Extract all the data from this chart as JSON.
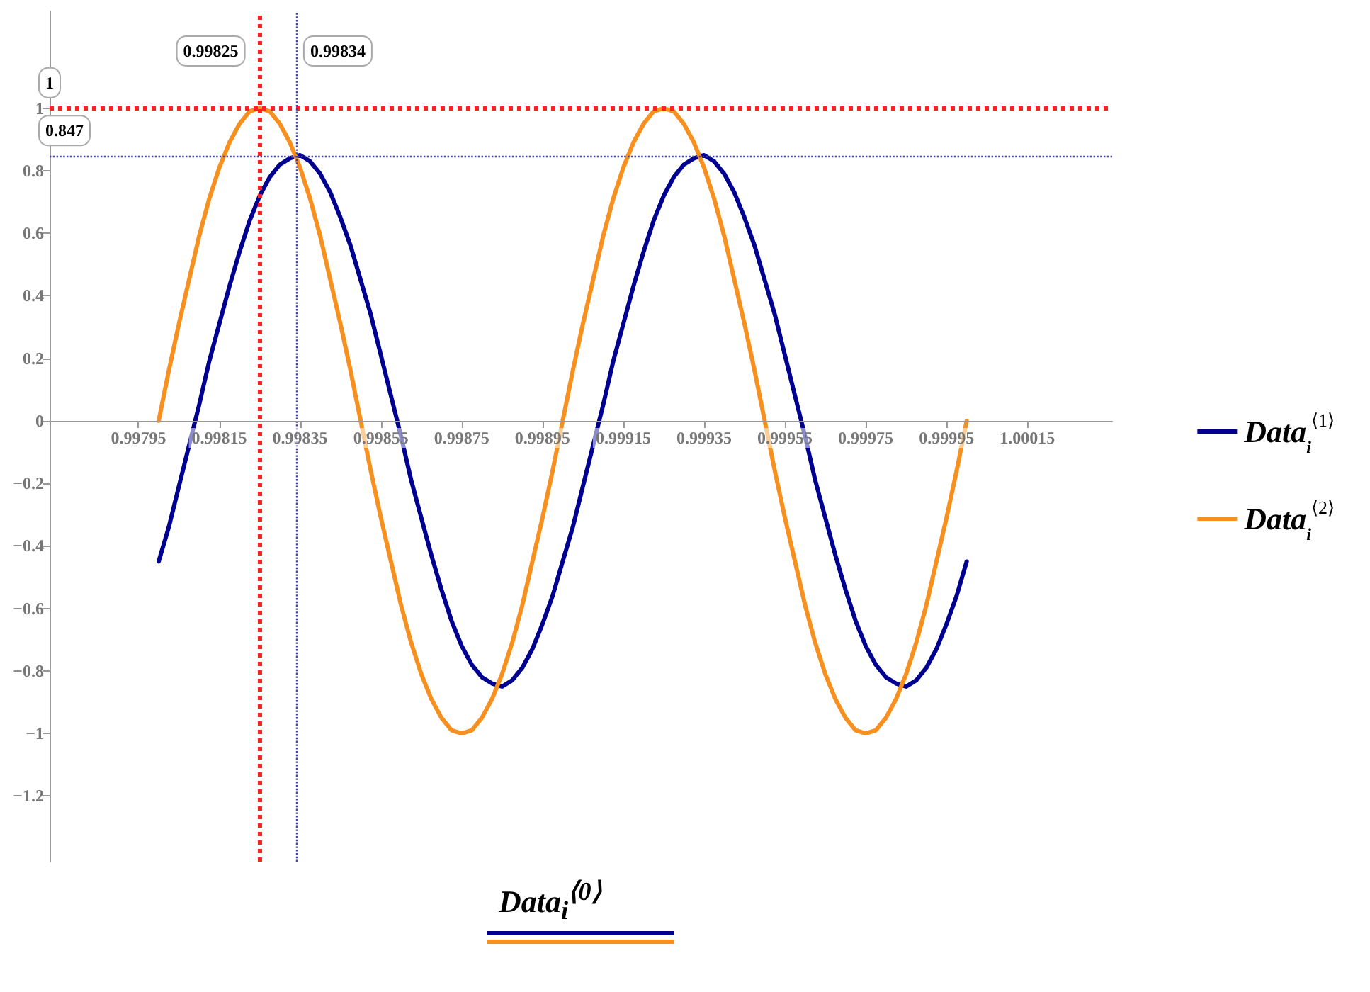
{
  "chart_data": {
    "type": "line",
    "xlabel": "Data$_{i}$$^{⟨0⟩}$",
    "x": [
      0.998,
      0.998025,
      0.99805,
      0.998075,
      0.9981,
      0.998125,
      0.99815,
      0.998175,
      0.9982,
      0.998225,
      0.99825,
      0.998275,
      0.9983,
      0.998325,
      0.99835,
      0.998375,
      0.9984,
      0.998425,
      0.99845,
      0.998475,
      0.9985,
      0.998525,
      0.99855,
      0.998575,
      0.9986,
      0.998625,
      0.99865,
      0.998675,
      0.9987,
      0.998725,
      0.99875,
      0.998775,
      0.9988,
      0.998825,
      0.99885,
      0.998875,
      0.9989,
      0.998925,
      0.99895,
      0.998975,
      0.999,
      0.999025,
      0.99905,
      0.999075,
      0.9991,
      0.999125,
      0.99915,
      0.999175,
      0.9992,
      0.999225,
      0.99925,
      0.999275,
      0.9993,
      0.999325,
      0.99935,
      0.999375,
      0.9994,
      0.999425,
      0.99945,
      0.999475,
      0.9995,
      0.999525,
      0.99955,
      0.999575,
      0.9996,
      0.999625,
      0.99965,
      0.999675,
      0.9997,
      0.999725,
      0.99975,
      0.999775,
      0.9998,
      0.999825,
      0.99985,
      0.999875,
      0.9999,
      0.999925,
      0.99995,
      0.999975,
      1.0
    ],
    "series": [
      {
        "name": "Data$_{i}$$^{⟨1⟩}$",
        "color": "#000090",
        "values": [
          -0.45,
          -0.34,
          -0.21,
          -0.08,
          0.05,
          0.19,
          0.31,
          0.43,
          0.54,
          0.64,
          0.72,
          0.78,
          0.82,
          0.84,
          0.85,
          0.83,
          0.79,
          0.73,
          0.65,
          0.56,
          0.45,
          0.34,
          0.21,
          0.08,
          -0.05,
          -0.19,
          -0.31,
          -0.43,
          -0.54,
          -0.64,
          -0.72,
          -0.78,
          -0.82,
          -0.84,
          -0.85,
          -0.83,
          -0.79,
          -0.73,
          -0.65,
          -0.56,
          -0.45,
          -0.34,
          -0.21,
          -0.08,
          0.05,
          0.19,
          0.31,
          0.43,
          0.54,
          0.64,
          0.72,
          0.78,
          0.82,
          0.84,
          0.85,
          0.83,
          0.79,
          0.73,
          0.65,
          0.56,
          0.45,
          0.34,
          0.21,
          0.08,
          -0.05,
          -0.19,
          -0.31,
          -0.43,
          -0.54,
          -0.64,
          -0.72,
          -0.78,
          -0.82,
          -0.84,
          -0.85,
          -0.83,
          -0.79,
          -0.73,
          -0.65,
          -0.56,
          -0.45
        ]
      },
      {
        "name": "Data$_{i}$$^{⟨2⟩}$",
        "color": "#f7901e",
        "values": [
          0,
          0.16,
          0.31,
          0.45,
          0.59,
          0.71,
          0.81,
          0.89,
          0.95,
          0.99,
          1,
          0.99,
          0.95,
          0.89,
          0.81,
          0.71,
          0.59,
          0.45,
          0.31,
          0.16,
          0,
          -0.16,
          -0.31,
          -0.45,
          -0.59,
          -0.71,
          -0.81,
          -0.89,
          -0.95,
          -0.99,
          -1,
          -0.99,
          -0.95,
          -0.89,
          -0.81,
          -0.71,
          -0.59,
          -0.45,
          -0.31,
          -0.16,
          0,
          0.16,
          0.31,
          0.45,
          0.59,
          0.71,
          0.81,
          0.89,
          0.95,
          0.99,
          1,
          0.99,
          0.95,
          0.89,
          0.81,
          0.71,
          0.59,
          0.45,
          0.31,
          0.16,
          0,
          -0.16,
          -0.31,
          -0.45,
          -0.59,
          -0.71,
          -0.81,
          -0.89,
          -0.95,
          -0.99,
          -1,
          -0.99,
          -0.95,
          -0.89,
          -0.81,
          -0.71,
          -0.59,
          -0.45,
          -0.31,
          -0.16,
          0
        ]
      }
    ],
    "xlim": [
      0.99773,
      1.00036
    ],
    "xticks": [
      0.99795,
      0.99815,
      0.99835,
      0.99855,
      0.99875,
      0.99895,
      0.99915,
      0.99935,
      0.99955,
      0.99975,
      0.99995,
      1.00015
    ],
    "ylim": [
      -1.41,
      1.31
    ],
    "yticks": [
      -1.2,
      -1,
      -0.8,
      -0.6,
      -0.4,
      -0.2,
      0,
      0.2,
      0.4,
      0.6,
      0.8,
      1
    ],
    "ref_lines": [
      {
        "axis": "y",
        "value": 1,
        "label": "1",
        "color": "#ff2020",
        "line_style": "dotted"
      },
      {
        "axis": "y",
        "value": 0.847,
        "label": "0.847",
        "color": "#4040b0",
        "line_style": "dotted"
      },
      {
        "axis": "x",
        "value": 0.99825,
        "label": "0.99825",
        "color": "#ff2020",
        "line_style": "dotted"
      },
      {
        "axis": "x",
        "value": 0.99834,
        "label": "0.99834",
        "color": "#4040b0",
        "line_style": "dotted"
      }
    ],
    "legend": "right",
    "marker": "none",
    "line_style": "solid"
  }
}
